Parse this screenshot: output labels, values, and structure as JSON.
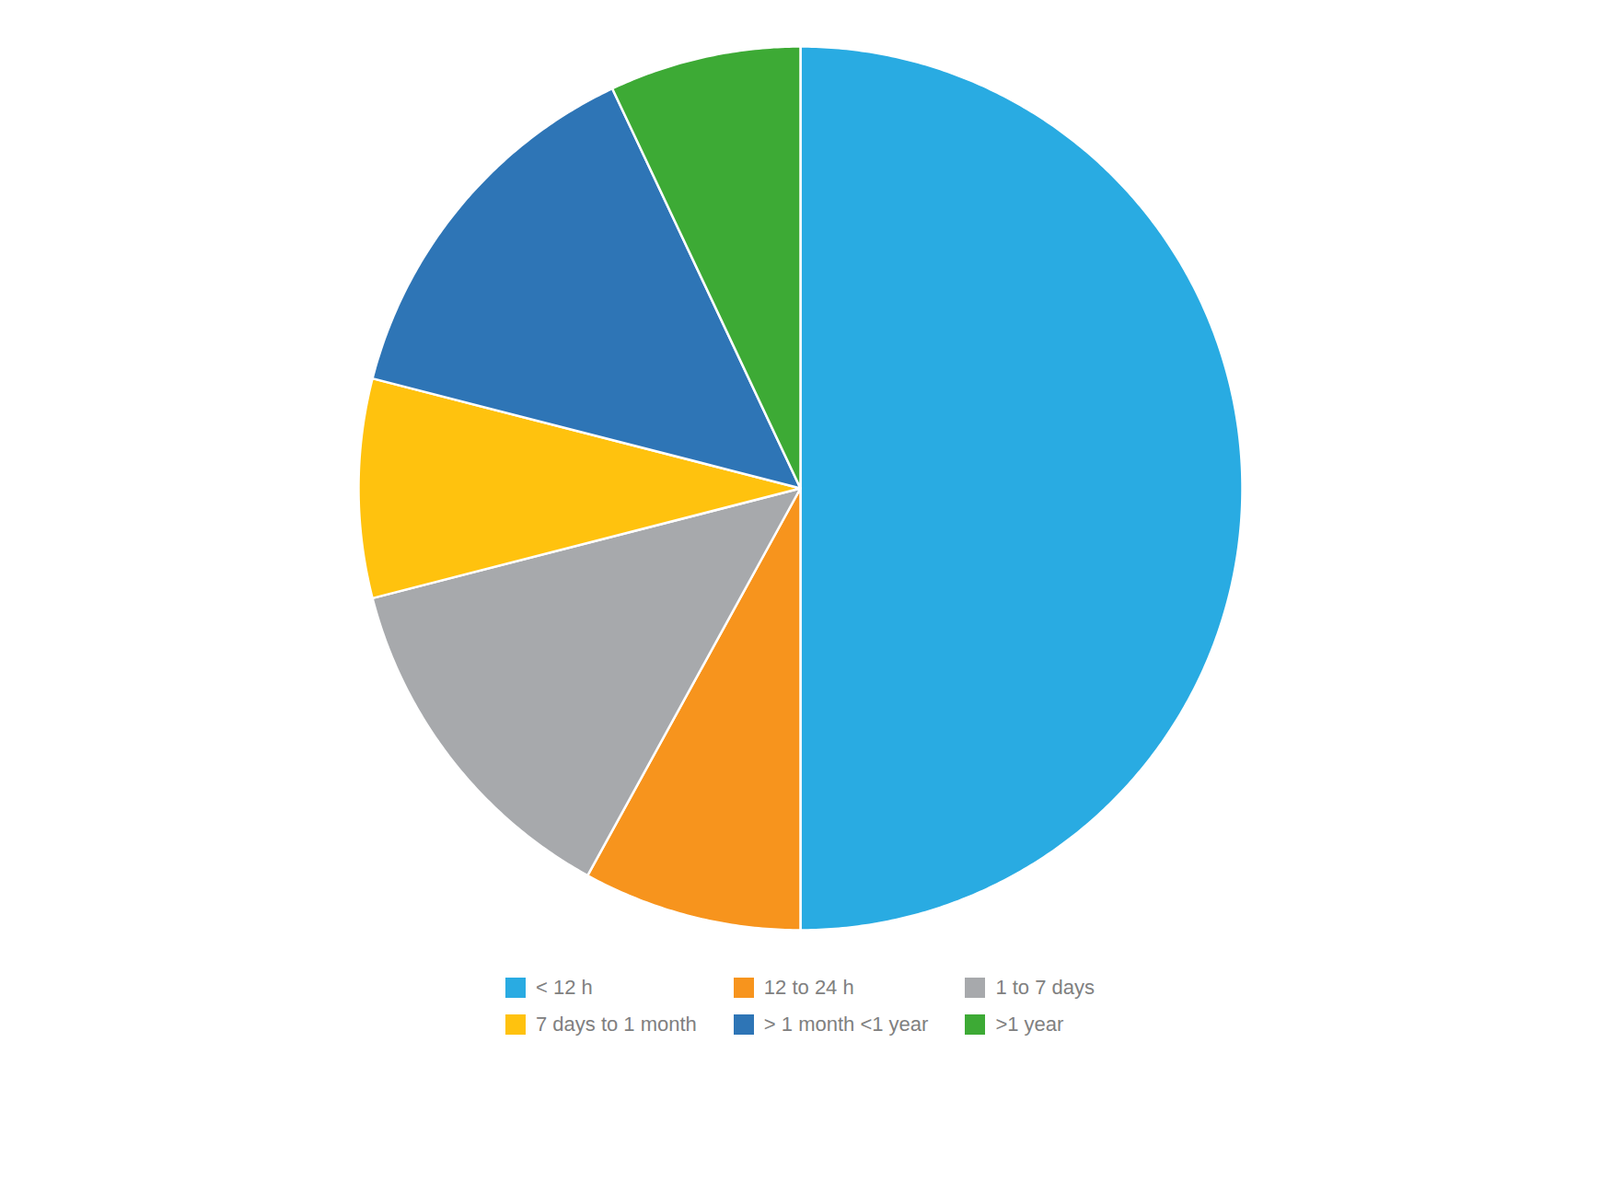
{
  "chart_data": {
    "type": "pie",
    "categories": [
      "< 12 h",
      "12 to 24 h",
      "1 to 7 days",
      "7 days to 1 month",
      "> 1 month <1 year",
      ">1 year"
    ],
    "values": [
      50,
      8,
      13,
      8,
      14,
      7
    ],
    "colors": [
      "#29ABE2",
      "#F7941D",
      "#A7A9AC",
      "#FFC20E",
      "#2E75B6",
      "#3DAA35"
    ],
    "legend": "bottom"
  }
}
